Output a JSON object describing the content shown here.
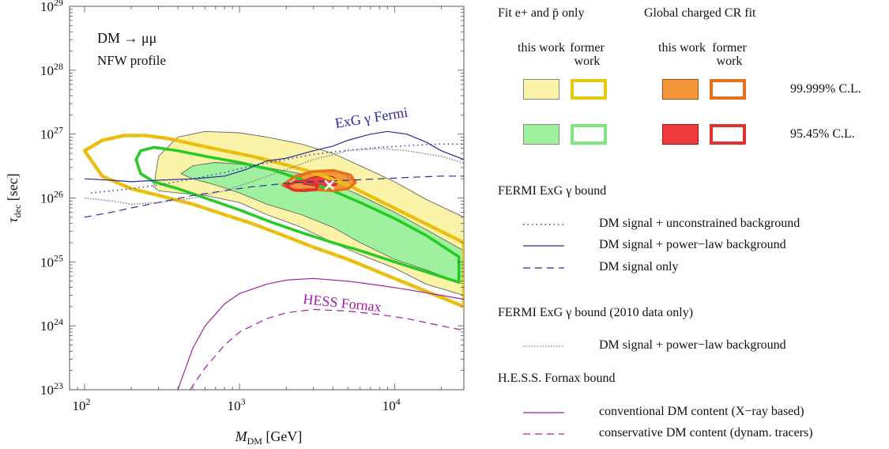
{
  "chart_data": {
    "type": "line",
    "xlabel": "M_DM [GeV]",
    "ylabel": "τ_dec [sec]",
    "x_scale": "log",
    "y_scale": "log",
    "xlim": [
      80,
      28000
    ],
    "ylim": [
      1e+23,
      1e+29
    ],
    "x_ticks": [
      "10^2",
      "10^3",
      "10^4"
    ],
    "y_ticks": [
      "10^23",
      "10^24",
      "10^25",
      "10^26",
      "10^27",
      "10^28",
      "10^29"
    ],
    "annotations": [
      {
        "text": "DM → μμ",
        "placement": "top-left"
      },
      {
        "text": "NFW profile",
        "placement": "top-left"
      },
      {
        "text": "ExG γ Fermi",
        "color": "#2a2a9a"
      },
      {
        "text": "HESS Fornax",
        "color": "#a020a0"
      }
    ],
    "best_fit_marker": {
      "x": 3800,
      "y": 1.6e+26,
      "symbol": "×"
    },
    "series": [
      {
        "name": "Fermi ExG γ: DM signal + unconstrained background",
        "style": "dotted",
        "color": "#3a3ab0",
        "x": [
          110,
          150,
          200,
          300,
          500,
          800,
          1200,
          2000,
          3000,
          5000,
          8000,
          12000,
          20000,
          28000
        ],
        "y": [
          1.2e+26,
          1.3e+26,
          1.4e+26,
          1.6e+26,
          2e+26,
          2.5e+26,
          3.2e+26,
          4e+26,
          4.8e+26,
          5.6e+26,
          6.2e+26,
          6.6e+26,
          7e+26,
          7e+26
        ]
      },
      {
        "name": "Fermi ExG γ: DM signal + power-law background",
        "style": "solid",
        "color": "#2a2a9a",
        "x": [
          100,
          150,
          200,
          300,
          500,
          800,
          1100,
          1500,
          2000,
          3000,
          4000,
          5000,
          7000,
          9000,
          12000,
          16000,
          20000,
          28000
        ],
        "y": [
          2e+26,
          1.9e+26,
          1.8e+26,
          1.9e+26,
          2e+26,
          2.2e+26,
          2.8e+26,
          3.8e+26,
          4.2e+26,
          5.5e+26,
          6.5e+26,
          8e+26,
          1e+27,
          1.1e+27,
          1e+27,
          7.5e+26,
          5.5e+26,
          4e+26
        ]
      },
      {
        "name": "Fermi ExG γ: DM signal only",
        "style": "dashed",
        "color": "#2a2a9a",
        "x": [
          100,
          150,
          200,
          300,
          500,
          800,
          1200,
          2000,
          3000,
          5000,
          8000,
          12000,
          20000,
          28000
        ],
        "y": [
          5e+25,
          6e+25,
          7e+25,
          8.5e+25,
          1.1e+26,
          1.3e+26,
          1.5e+26,
          1.7e+26,
          1.8e+26,
          1.9e+26,
          2e+26,
          2.1e+26,
          2.2e+26,
          2.2e+26
        ]
      },
      {
        "name": "Fermi ExG γ (2010 data only): DM signal + power-law background",
        "style": "dotted",
        "color": "#808080",
        "x": [
          100,
          150,
          200,
          300,
          500,
          800,
          1200,
          2000,
          3000,
          5000,
          8000,
          12000,
          20000,
          28000
        ],
        "y": [
          1e+26,
          9e+25,
          8e+25,
          8.5e+25,
          1e+26,
          1.3e+26,
          1.8e+26,
          2.8e+26,
          4e+26,
          5.5e+26,
          6e+26,
          5.5e+26,
          4.5e+26,
          3.5e+26
        ]
      },
      {
        "name": "HESS Fornax: conventional DM content (X-ray based)",
        "style": "solid",
        "color": "#a020a0",
        "x": [
          400,
          500,
          600,
          800,
          1000,
          1500,
          2000,
          3000,
          5000,
          8000,
          12000,
          20000,
          28000
        ],
        "y": [
          1e+23,
          4.5e+23,
          1e+24,
          2.2e+24,
          3.2e+24,
          4.5e+24,
          5.2e+24,
          5.5e+24,
          5e+24,
          4.3e+24,
          3.7e+24,
          3e+24,
          2.6e+24
        ]
      },
      {
        "name": "HESS Fornax: conservative DM content (dynam. tracers)",
        "style": "dashed",
        "color": "#a020a0",
        "x": [
          480,
          600,
          800,
          1000,
          1500,
          2000,
          3000,
          5000,
          8000,
          12000,
          20000,
          28000
        ],
        "y": [
          1e+23,
          2.2e+23,
          5e+23,
          8e+23,
          1.3e+24,
          1.6e+24,
          1.8e+24,
          1.7e+24,
          1.5e+24,
          1.3e+24,
          1e+24,
          8.5e+23
        ]
      }
    ],
    "regions": [
      {
        "name": "Fit e+ and pbar only, 99.999% C.L., this work",
        "fill": "#fbf3a8",
        "stroke": "#666666",
        "x": [
          280,
          300,
          400,
          600,
          1000,
          1500,
          2500,
          4000,
          6000,
          10000,
          16000,
          28000,
          28000,
          16000,
          10000,
          6000,
          4000,
          2500,
          1500,
          1000,
          600,
          400,
          300,
          280
        ],
        "y": [
          1.5e+26,
          4.5e+26,
          9e+26,
          1.1e+27,
          1.05e+27,
          9e+26,
          7e+26,
          5e+26,
          3.2e+26,
          1.8e+26,
          9.5e+25,
          5e+25,
          3e+24,
          4.5e+24,
          8e+24,
          1.3e+25,
          2e+25,
          3.5e+25,
          5.5e+25,
          8.5e+25,
          1.1e+26,
          1.2e+26,
          1.3e+26,
          1.5e+26
        ]
      },
      {
        "name": "Fit e+ and pbar only, 95.45% C.L., this work",
        "fill": "#9ff09f",
        "stroke": "#666666",
        "x": [
          420,
          500,
          700,
          1000,
          1500,
          2500,
          4000,
          6000,
          10000,
          16000,
          28000,
          28000,
          16000,
          10000,
          6000,
          4000,
          2500,
          1500,
          1000,
          700,
          500,
          420
        ],
        "y": [
          2.4e+26,
          3.2e+26,
          3.6e+26,
          3.4e+26,
          3e+26,
          2.4e+26,
          1.7e+26,
          1.1e+26,
          6e+25,
          3.2e+25,
          1.5e+25,
          4.5e+24,
          7.5e+24,
          1.1e+25,
          2e+25,
          3.5e+25,
          5.5e+25,
          8e+25,
          1.2e+26,
          1.6e+26,
          2e+26,
          2.4e+26
        ]
      },
      {
        "name": "Global charged CR fit, 99.999% C.L., this work",
        "fill": "#f4973a",
        "stroke": "#a05010",
        "x": [
          2100,
          2500,
          3000,
          3800,
          4800,
          5500,
          5200,
          4500,
          3500,
          2700,
          2200,
          2000,
          2100
        ],
        "y": [
          1.65e+26,
          2.2e+26,
          2.55e+26,
          2.65e+26,
          2.4e+26,
          1.8e+26,
          1.45e+26,
          1.35e+26,
          1.4e+26,
          1.4e+26,
          1.35e+26,
          1.45e+26,
          1.65e+26
        ]
      },
      {
        "name": "Global charged CR fit, 95.45% C.L., this work",
        "fill": "#ee3b3b",
        "stroke": "#b01010",
        "x": [
          2500,
          2900,
          3400,
          4000,
          4400,
          4200,
          3600,
          3000,
          2600,
          2500
        ],
        "y": [
          1.8e+26,
          2.1e+26,
          2.25e+26,
          2.15e+26,
          1.85e+26,
          1.6e+26,
          1.5e+26,
          1.55e+26,
          1.65e+26,
          1.8e+26
        ]
      },
      {
        "name": "Fit e+ and pbar only, 99.999% C.L., former work",
        "fill": "none",
        "stroke": "#e6c80c",
        "stroke2": "#f3a733",
        "x": [
          100,
          130,
          180,
          250,
          350,
          500,
          800,
          1200,
          2000,
          3000,
          5000,
          28000,
          28000,
          10000,
          5000,
          3000,
          2000,
          1200,
          800,
          500,
          300,
          200,
          130,
          100
        ],
        "y": [
          5.5e+26,
          8e+26,
          9.5e+26,
          9.5e+26,
          8.5e+26,
          7e+26,
          5.5e+26,
          4.5e+26,
          3.3e+26,
          2.5e+26,
          1.6e+26,
          2e+25,
          2e+24,
          5.5e+24,
          1.1e+25,
          1.7e+25,
          2.5e+25,
          4e+25,
          5.5e+25,
          8e+25,
          1.1e+26,
          1.4e+26,
          2.2e+26,
          5.5e+26
        ]
      },
      {
        "name": "Fit e+ and pbar only, 95.45% C.L., former work",
        "fill": "none",
        "stroke": "#22cc22",
        "x": [
          215,
          230,
          280,
          400,
          600,
          1000,
          1600,
          2600,
          4000,
          6000,
          10000,
          16000,
          26000,
          26000,
          16000,
          10000,
          6000,
          4000,
          2600,
          1600,
          1000,
          600,
          400,
          280,
          230,
          215
        ],
        "y": [
          4e+26,
          5.5e+26,
          6.2e+26,
          5.5e+26,
          4.5e+26,
          3.6e+26,
          2.8e+26,
          1.9e+26,
          1.3e+26,
          8.5e+25,
          4.8e+25,
          2.6e+25,
          1.2e+25,
          4.8e+24,
          7e+24,
          1e+25,
          1.5e+25,
          2e+25,
          2.8e+25,
          4.2e+25,
          6.5e+25,
          1e+26,
          1.4e+26,
          1.8e+26,
          2.4e+26,
          4e+26
        ]
      },
      {
        "name": "Global charged CR fit, 99.999% C.L., former work",
        "fill": "none",
        "stroke": "#e8701a",
        "x": [
          1900,
          2300,
          3000,
          4000,
          5200,
          5600,
          5000,
          4000,
          3000,
          2300,
          1900
        ],
        "y": [
          1.6e+26,
          2.2e+26,
          2.6e+26,
          2.7e+26,
          2.3e+26,
          1.75e+26,
          1.4e+26,
          1.3e+26,
          1.35e+26,
          1.3e+26,
          1.6e+26
        ]
      },
      {
        "name": "Global charged CR fit, 95.45% C.L., former work",
        "fill": "none",
        "stroke": "#e03030",
        "x": [
          2000,
          2300,
          2700,
          3200,
          3100,
          2600,
          2200,
          2000
        ],
        "y": [
          1.55e+26,
          1.8e+26,
          1.85e+26,
          1.6e+26,
          1.35e+26,
          1.3e+26,
          1.35e+26,
          1.55e+26
        ]
      }
    ]
  },
  "legend": {
    "group1_title": "Fit e+ and p̄ only",
    "group2_title": "Global charged CR fit",
    "col_this": "this work",
    "col_former": "former work",
    "cl_high": "99.999% C.L.",
    "cl_low": "95.45% C.L.",
    "colors": {
      "yellow_fill": "#fbf3a8",
      "yellow_stroke": "#e6c80c",
      "green_fill": "#9ff09f",
      "green_stroke": "#22cc22",
      "orange_fill": "#f4973a",
      "orange_stroke": "#e8701a",
      "red_fill": "#ee3b3b",
      "red_stroke": "#e03030"
    },
    "fermi_title": "FERMI ExG γ bound",
    "fermi_unconstrained": "DM signal + unconstrained background",
    "fermi_powerlaw": "DM signal + power−law background",
    "fermi_only": "DM signal only",
    "fermi2010_title": "FERMI ExG γ bound (2010 data only)",
    "fermi2010_powerlaw": "DM signal + power−law background",
    "hess_title": "H.E.S.S. Fornax bound",
    "hess_conventional": "conventional DM content (X−ray based)",
    "hess_conservative": "conservative DM content (dynam. tracers)"
  }
}
